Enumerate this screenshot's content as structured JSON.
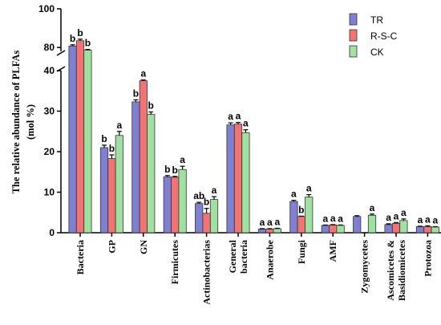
{
  "chart_data": {
    "type": "bar",
    "ylabel_line1": "The relative abundance of PLFAs",
    "ylabel_line2": "(mol %)",
    "xlabel": "",
    "y_axis_break": true,
    "lower_ylim": [
      0,
      40
    ],
    "upper_ylim": [
      78,
      100
    ],
    "lower_ticks": [
      0,
      10,
      20,
      30,
      40
    ],
    "upper_ticks": [
      80,
      100
    ],
    "legend_position": "top-right",
    "grid": false,
    "categories": [
      {
        "lines": [
          "Bacteria"
        ]
      },
      {
        "lines": [
          "GP"
        ]
      },
      {
        "lines": [
          "GN"
        ]
      },
      {
        "lines": [
          "Firmicutes"
        ]
      },
      {
        "lines": [
          "Actinobacterias"
        ]
      },
      {
        "lines": [
          "General",
          "bacteria"
        ]
      },
      {
        "lines": [
          "Anaerobe"
        ]
      },
      {
        "lines": [
          "Fungi"
        ]
      },
      {
        "lines": [
          "AMF"
        ]
      },
      {
        "lines": [
          "Zygomycetes"
        ]
      },
      {
        "lines": [
          "Ascomicetes &",
          "Basidiomicetes"
        ]
      },
      {
        "lines": [
          "Protozoa"
        ]
      }
    ],
    "series": [
      {
        "name": "TR",
        "color": "#8080d0",
        "values": [
          80.8,
          21.0,
          32.3,
          13.8,
          7.2,
          26.6,
          0.9,
          7.7,
          1.8,
          4.0,
          2.0,
          1.5
        ],
        "errors": [
          0.6,
          0.6,
          0.5,
          0.3,
          0.3,
          0.5,
          0.1,
          0.3,
          0.1,
          0.2,
          0.2,
          0.1
        ],
        "labels": [
          "b",
          "b",
          "b",
          "b",
          "ab",
          "a",
          "a",
          "a",
          "a",
          "",
          "a",
          "a"
        ]
      },
      {
        "name": "R-S-C",
        "color": "#f07474",
        "values": [
          83.5,
          18.3,
          37.5,
          13.7,
          4.8,
          26.8,
          0.9,
          4.0,
          1.9,
          0,
          2.3,
          1.5
        ],
        "errors": [
          0.8,
          0.9,
          0.2,
          0.2,
          1.2,
          0.4,
          0.1,
          0.1,
          0.1,
          0,
          0.2,
          0.2
        ],
        "labels": [
          "b",
          "b",
          "a",
          "b",
          "b",
          "a",
          "a",
          "b",
          "a",
          "",
          "a",
          "a"
        ]
      },
      {
        "name": "CK",
        "color": "#a0e0a0",
        "values": [
          78.6,
          24.0,
          29.2,
          15.6,
          8.2,
          24.7,
          1.0,
          8.8,
          1.8,
          4.3,
          3.0,
          1.4
        ],
        "errors": [
          0.4,
          1.0,
          0.6,
          0.8,
          0.7,
          0.7,
          0.1,
          0.6,
          0.1,
          0.3,
          0.4,
          0.1
        ],
        "labels": [
          "b",
          "a",
          "b",
          "a",
          "a",
          "a",
          "a",
          "a",
          "a",
          "a",
          "a",
          "a"
        ]
      }
    ]
  }
}
